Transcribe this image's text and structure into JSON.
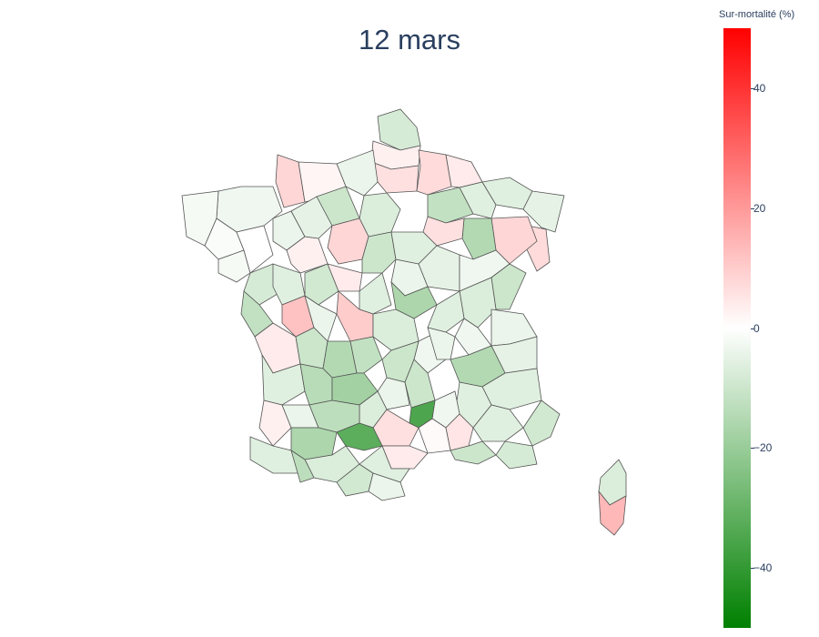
{
  "title": "12 mars",
  "colorbar": {
    "title": "Sur-mortalité (%)",
    "range": [
      -50,
      50
    ],
    "ticks": [
      40,
      20,
      0,
      -20,
      -40
    ],
    "tick_labels": [
      "40",
      "20",
      "0",
      "−20",
      "−40"
    ],
    "colorscale": [
      "#008000",
      "#ffffff",
      "#ff0000"
    ]
  },
  "chart_data": {
    "type": "heatmap",
    "map": "France départements (choropleth)",
    "title": "12 mars",
    "legend_title": "Sur-mortalité (%)",
    "zrange": [
      -50,
      50
    ],
    "regions": [
      {
        "id": "nord",
        "value": -8
      },
      {
        "id": "pas-de-calais",
        "value": 3
      },
      {
        "id": "somme",
        "value": 6
      },
      {
        "id": "aisne",
        "value": 7
      },
      {
        "id": "ardennes",
        "value": 4
      },
      {
        "id": "seine-maritime",
        "value": 8
      },
      {
        "id": "oise",
        "value": -4
      },
      {
        "id": "marne",
        "value": -12
      },
      {
        "id": "meuse",
        "value": -6
      },
      {
        "id": "moselle",
        "value": -6
      },
      {
        "id": "bas-rhin",
        "value": -5
      },
      {
        "id": "haut-rhin",
        "value": 7
      },
      {
        "id": "vosges",
        "value": 8
      },
      {
        "id": "meurthe-et-moselle",
        "value": -15
      },
      {
        "id": "haute-marne",
        "value": 6
      },
      {
        "id": "calvados",
        "value": 2
      },
      {
        "id": "eure",
        "value": -10
      },
      {
        "id": "paris-region",
        "value": -7
      },
      {
        "id": "manche",
        "value": -3
      },
      {
        "id": "finistere",
        "value": -2
      },
      {
        "id": "cotes-armor",
        "value": -1
      },
      {
        "id": "morbihan",
        "value": -2
      },
      {
        "id": "ille-et-vilaine",
        "value": 0
      },
      {
        "id": "mayenne",
        "value": -4
      },
      {
        "id": "sarthe",
        "value": 3
      },
      {
        "id": "orne",
        "value": -5
      },
      {
        "id": "eure-et-loir",
        "value": 8
      },
      {
        "id": "loiret",
        "value": -10
      },
      {
        "id": "yonne",
        "value": -4
      },
      {
        "id": "aube",
        "value": -6
      },
      {
        "id": "cote-dor",
        "value": -5
      },
      {
        "id": "haute-saone",
        "value": -3
      },
      {
        "id": "doubs",
        "value": -10
      },
      {
        "id": "jura",
        "value": -7
      },
      {
        "id": "loire-atlantique",
        "value": -8
      },
      {
        "id": "maine-et-loire",
        "value": -6
      },
      {
        "id": "indre-et-loire",
        "value": -9
      },
      {
        "id": "loir-et-cher",
        "value": 4
      },
      {
        "id": "cher",
        "value": -6
      },
      {
        "id": "nievre",
        "value": -16
      },
      {
        "id": "saone-et-loire",
        "value": -6
      },
      {
        "id": "ain",
        "value": -3
      },
      {
        "id": "vendee",
        "value": -12
      },
      {
        "id": "deux-sevres",
        "value": 12
      },
      {
        "id": "vienne",
        "value": -4
      },
      {
        "id": "indre",
        "value": 10
      },
      {
        "id": "allier",
        "value": -7
      },
      {
        "id": "loire",
        "value": -3
      },
      {
        "id": "rhone",
        "value": -4
      },
      {
        "id": "haute-savoie",
        "value": -4
      },
      {
        "id": "savoie",
        "value": -5
      },
      {
        "id": "charente-maritime",
        "value": 4
      },
      {
        "id": "charente",
        "value": -10
      },
      {
        "id": "haute-vienne",
        "value": -15
      },
      {
        "id": "creuse",
        "value": -12
      },
      {
        "id": "puy-de-dome",
        "value": -10
      },
      {
        "id": "cantal",
        "value": -4
      },
      {
        "id": "haute-loire",
        "value": -10
      },
      {
        "id": "isere",
        "value": -15
      },
      {
        "id": "hautes-alpes",
        "value": -6
      },
      {
        "id": "drome",
        "value": -6
      },
      {
        "id": "ardeche",
        "value": -3
      },
      {
        "id": "gironde",
        "value": -6
      },
      {
        "id": "dordogne",
        "value": -14
      },
      {
        "id": "correze",
        "value": -18
      },
      {
        "id": "lot",
        "value": -7
      },
      {
        "id": "lozere",
        "value": -35
      },
      {
        "id": "aveyron",
        "value": 6
      },
      {
        "id": "landes",
        "value": 3
      },
      {
        "id": "lot-et-garonne",
        "value": -4
      },
      {
        "id": "tarn-et-garonne",
        "value": -13
      },
      {
        "id": "tarn",
        "value": -32
      },
      {
        "id": "gard",
        "value": 1
      },
      {
        "id": "vaucluse",
        "value": 5
      },
      {
        "id": "alpes-haute-provence",
        "value": -6
      },
      {
        "id": "alpes-maritimes",
        "value": -9
      },
      {
        "id": "pyrenees-atlantiques",
        "value": -6
      },
      {
        "id": "gers",
        "value": -16
      },
      {
        "id": "haute-garonne",
        "value": -7
      },
      {
        "id": "herault",
        "value": 4
      },
      {
        "id": "bouches-du-rhone",
        "value": -10
      },
      {
        "id": "var",
        "value": -8
      },
      {
        "id": "hautes-pyrenees",
        "value": -13
      },
      {
        "id": "ariege",
        "value": -9
      },
      {
        "id": "aude",
        "value": -6
      },
      {
        "id": "pyrenees-orientales",
        "value": -4
      },
      {
        "id": "haute-corse",
        "value": -7
      },
      {
        "id": "corse-du-sud",
        "value": 14
      }
    ]
  }
}
